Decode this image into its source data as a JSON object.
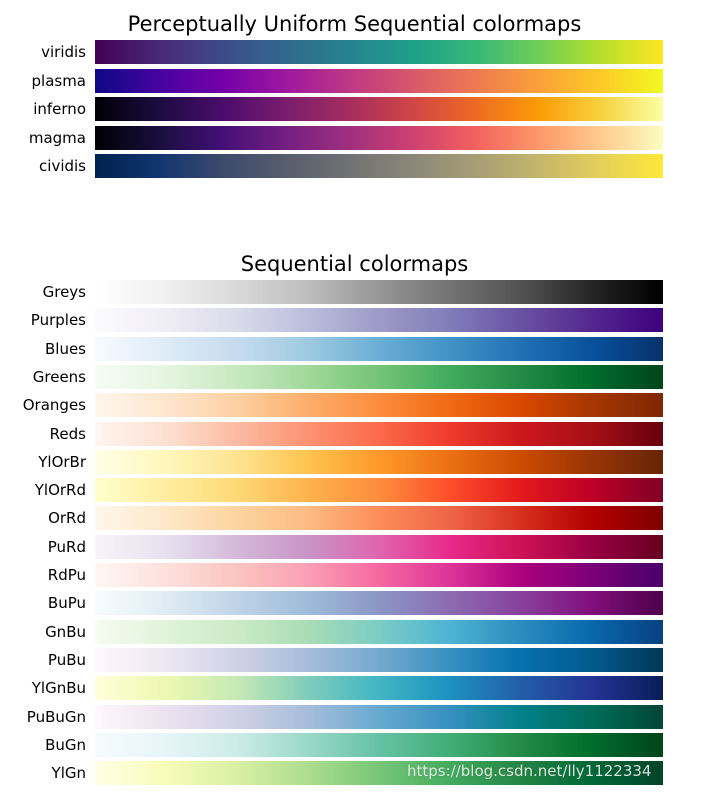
{
  "chart_data": [
    {
      "type": "heatmap",
      "title": "Perceptually Uniform Sequential colormaps",
      "colormaps": [
        {
          "name": "viridis",
          "colors": [
            "#440154",
            "#482878",
            "#3e4a89",
            "#31688e",
            "#26828e",
            "#1f9e89",
            "#35b779",
            "#6ece58",
            "#b5de2b",
            "#fde725"
          ]
        },
        {
          "name": "plasma",
          "colors": [
            "#0d0887",
            "#46039f",
            "#7201a8",
            "#9c179e",
            "#bd3786",
            "#d8576b",
            "#ed7953",
            "#fb9f3a",
            "#fdca26",
            "#f0f921"
          ]
        },
        {
          "name": "inferno",
          "colors": [
            "#000004",
            "#1b0c41",
            "#4a0c6b",
            "#781c6d",
            "#a52c60",
            "#cf4446",
            "#ed6925",
            "#fb9b06",
            "#f7d13d",
            "#fcffa4"
          ]
        },
        {
          "name": "magma",
          "colors": [
            "#000004",
            "#180f3d",
            "#440f76",
            "#721f81",
            "#9e2f7f",
            "#cd4071",
            "#f1605d",
            "#fd9668",
            "#feca8d",
            "#fcfdbf"
          ]
        },
        {
          "name": "cividis",
          "colors": [
            "#00224e",
            "#123570",
            "#3b496c",
            "#575d6d",
            "#707173",
            "#8a8779",
            "#a69d75",
            "#c4b56c",
            "#e4cf5b",
            "#fee838"
          ]
        }
      ]
    },
    {
      "type": "heatmap",
      "title": "Sequential colormaps",
      "colormaps": [
        {
          "name": "Greys",
          "colors": [
            "#ffffff",
            "#f0f0f0",
            "#d9d9d9",
            "#bdbdbd",
            "#969696",
            "#737373",
            "#525252",
            "#252525",
            "#000000"
          ]
        },
        {
          "name": "Purples",
          "colors": [
            "#fcfbfd",
            "#efedf5",
            "#dadaeb",
            "#bcbddc",
            "#9e9ac8",
            "#807dba",
            "#6a51a3",
            "#54278f",
            "#3f007d"
          ]
        },
        {
          "name": "Blues",
          "colors": [
            "#f7fbff",
            "#deebf7",
            "#c6dbef",
            "#9ecae1",
            "#6baed6",
            "#4292c6",
            "#2171b5",
            "#08519c",
            "#08306b"
          ]
        },
        {
          "name": "Greens",
          "colors": [
            "#f7fcf5",
            "#e5f5e0",
            "#c7e9c0",
            "#a1d99b",
            "#74c476",
            "#41ab5d",
            "#238b45",
            "#006d2c",
            "#00441b"
          ]
        },
        {
          "name": "Oranges",
          "colors": [
            "#fff5eb",
            "#fee6ce",
            "#fdd0a2",
            "#fdae6b",
            "#fd8d3c",
            "#f16913",
            "#d94801",
            "#a63603",
            "#7f2704"
          ]
        },
        {
          "name": "Reds",
          "colors": [
            "#fff5f0",
            "#fee0d2",
            "#fcbba1",
            "#fc9272",
            "#fb6a4a",
            "#ef3b2c",
            "#cb181d",
            "#a50f15",
            "#67000d"
          ]
        },
        {
          "name": "YlOrBr",
          "colors": [
            "#ffffe5",
            "#fff7bc",
            "#fee391",
            "#fec44f",
            "#fe9929",
            "#ec7014",
            "#cc4c02",
            "#993404",
            "#662506"
          ]
        },
        {
          "name": "YlOrRd",
          "colors": [
            "#ffffcc",
            "#ffeda0",
            "#fed976",
            "#feb24c",
            "#fd8d3c",
            "#fc4e2a",
            "#e31a1c",
            "#bd0026",
            "#800026"
          ]
        },
        {
          "name": "OrRd",
          "colors": [
            "#fff7ec",
            "#fee8c8",
            "#fdd49e",
            "#fdbb84",
            "#fc8d59",
            "#ef6548",
            "#d7301f",
            "#b30000",
            "#7f0000"
          ]
        },
        {
          "name": "PuRd",
          "colors": [
            "#f7f4f9",
            "#e7e1ef",
            "#d4b9da",
            "#c994c7",
            "#df65b0",
            "#e7298a",
            "#ce1256",
            "#980043",
            "#67001f"
          ]
        },
        {
          "name": "RdPu",
          "colors": [
            "#fff7f3",
            "#fde0dd",
            "#fcc5c0",
            "#fa9fb5",
            "#f768a1",
            "#dd3497",
            "#ae017e",
            "#7a0177",
            "#49006a"
          ]
        },
        {
          "name": "BuPu",
          "colors": [
            "#f7fcfd",
            "#e0ecf4",
            "#bfd3e6",
            "#9ebcda",
            "#8c96c6",
            "#8c6bb1",
            "#88419d",
            "#810f7c",
            "#4d004b"
          ]
        },
        {
          "name": "GnBu",
          "colors": [
            "#f7fcf0",
            "#e0f3db",
            "#ccebc5",
            "#a8ddb5",
            "#7bccc4",
            "#4eb3d3",
            "#2b8cbe",
            "#0868ac",
            "#084081"
          ]
        },
        {
          "name": "PuBu",
          "colors": [
            "#fff7fb",
            "#ece7f2",
            "#d0d1e6",
            "#a6bddb",
            "#74a9cf",
            "#3690c0",
            "#0570b0",
            "#045a8d",
            "#023858"
          ]
        },
        {
          "name": "YlGnBu",
          "colors": [
            "#ffffd9",
            "#edf8b1",
            "#c7e9b4",
            "#7fcdbb",
            "#41b6c4",
            "#1d91c0",
            "#225ea8",
            "#253494",
            "#081d58"
          ]
        },
        {
          "name": "PuBuGn",
          "colors": [
            "#fff7fb",
            "#ece2f0",
            "#d0d1e6",
            "#a6bddb",
            "#67a9cf",
            "#3690c0",
            "#02818a",
            "#016c59",
            "#014636"
          ]
        },
        {
          "name": "BuGn",
          "colors": [
            "#f7fcfd",
            "#e5f5f9",
            "#ccece6",
            "#99d8c9",
            "#66c2a4",
            "#41ae76",
            "#238b45",
            "#006d2c",
            "#00441b"
          ]
        },
        {
          "name": "YlGn",
          "colors": [
            "#ffffe5",
            "#f7fcb9",
            "#d9f0a3",
            "#addd8e",
            "#78c679",
            "#41ab5d",
            "#238443",
            "#006837",
            "#004529"
          ]
        }
      ]
    }
  ],
  "watermark": "https://blog.csdn.net/lly1122334"
}
